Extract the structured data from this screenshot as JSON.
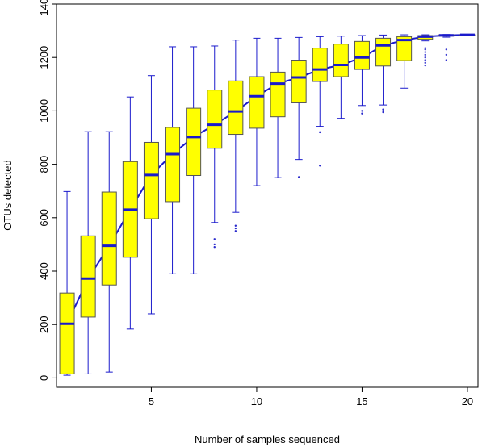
{
  "chart_data": {
    "type": "boxplot",
    "title": "",
    "xlabel": "Number of samples sequenced",
    "ylabel": "OTUs detected",
    "xlim": [
      0.5,
      20.5
    ],
    "ylim": [
      -35,
      1400
    ],
    "x_ticks": [
      5,
      10,
      15,
      20
    ],
    "y_ticks": [
      0,
      200,
      400,
      600,
      800,
      1000,
      1200,
      1400
    ],
    "box_fill": "#ffff00",
    "box_border": "#555555",
    "whisker_color": "#1a1acc",
    "median_color": "#1a1acc",
    "mean_line_color": "#1a1acc",
    "outlier_color": "#2a2acc",
    "grid": false,
    "legend": "none",
    "boxes": [
      {
        "x": 1,
        "min": 10,
        "q1": 15,
        "median": 203,
        "q3": 318,
        "max": 698,
        "outliers": []
      },
      {
        "x": 2,
        "min": 15,
        "q1": 228,
        "median": 372,
        "q3": 532,
        "max": 922,
        "outliers": []
      },
      {
        "x": 3,
        "min": 22,
        "q1": 348,
        "median": 495,
        "q3": 696,
        "max": 922,
        "outliers": []
      },
      {
        "x": 4,
        "min": 183,
        "q1": 452,
        "median": 630,
        "q3": 810,
        "max": 1052,
        "outliers": []
      },
      {
        "x": 5,
        "min": 240,
        "q1": 596,
        "median": 760,
        "q3": 882,
        "max": 1132,
        "outliers": []
      },
      {
        "x": 6,
        "min": 390,
        "q1": 660,
        "median": 838,
        "q3": 938,
        "max": 1240,
        "outliers": []
      },
      {
        "x": 7,
        "min": 390,
        "q1": 758,
        "median": 902,
        "q3": 1010,
        "max": 1240,
        "outliers": []
      },
      {
        "x": 8,
        "min": 582,
        "q1": 860,
        "median": 948,
        "q3": 1078,
        "max": 1243,
        "outliers": [
          520,
          500,
          490
        ]
      },
      {
        "x": 9,
        "min": 620,
        "q1": 912,
        "median": 998,
        "q3": 1112,
        "max": 1265,
        "outliers": [
          570,
          560,
          550
        ]
      },
      {
        "x": 10,
        "min": 720,
        "q1": 935,
        "median": 1055,
        "q3": 1128,
        "max": 1272,
        "outliers": []
      },
      {
        "x": 11,
        "min": 750,
        "q1": 978,
        "median": 1102,
        "q3": 1145,
        "max": 1272,
        "outliers": []
      },
      {
        "x": 12,
        "min": 818,
        "q1": 1030,
        "median": 1125,
        "q3": 1190,
        "max": 1275,
        "outliers": [
          752
        ]
      },
      {
        "x": 13,
        "min": 942,
        "q1": 1110,
        "median": 1155,
        "q3": 1235,
        "max": 1278,
        "outliers": [
          920,
          795
        ]
      },
      {
        "x": 14,
        "min": 972,
        "q1": 1128,
        "median": 1172,
        "q3": 1250,
        "max": 1280,
        "outliers": []
      },
      {
        "x": 15,
        "min": 1020,
        "q1": 1155,
        "median": 1200,
        "q3": 1260,
        "max": 1282,
        "outliers": [
          1000,
          990
        ]
      },
      {
        "x": 16,
        "min": 1022,
        "q1": 1168,
        "median": 1245,
        "q3": 1272,
        "max": 1284,
        "outliers": [
          1005,
          995
        ]
      },
      {
        "x": 17,
        "min": 1085,
        "q1": 1188,
        "median": 1265,
        "q3": 1278,
        "max": 1285,
        "outliers": []
      },
      {
        "x": 18,
        "min": 1262,
        "q1": 1268,
        "median": 1278,
        "q3": 1282,
        "max": 1285,
        "outliers": [
          1235,
          1230,
          1220,
          1210,
          1200,
          1190,
          1180,
          1170
        ]
      },
      {
        "x": 19,
        "min": 1276,
        "q1": 1280,
        "median": 1283,
        "q3": 1285,
        "max": 1286,
        "outliers": [
          1230,
          1210,
          1190
        ]
      },
      {
        "x": 20,
        "min": 1285,
        "q1": 1285,
        "median": 1285,
        "q3": 1285,
        "max": 1285,
        "outliers": []
      }
    ]
  }
}
